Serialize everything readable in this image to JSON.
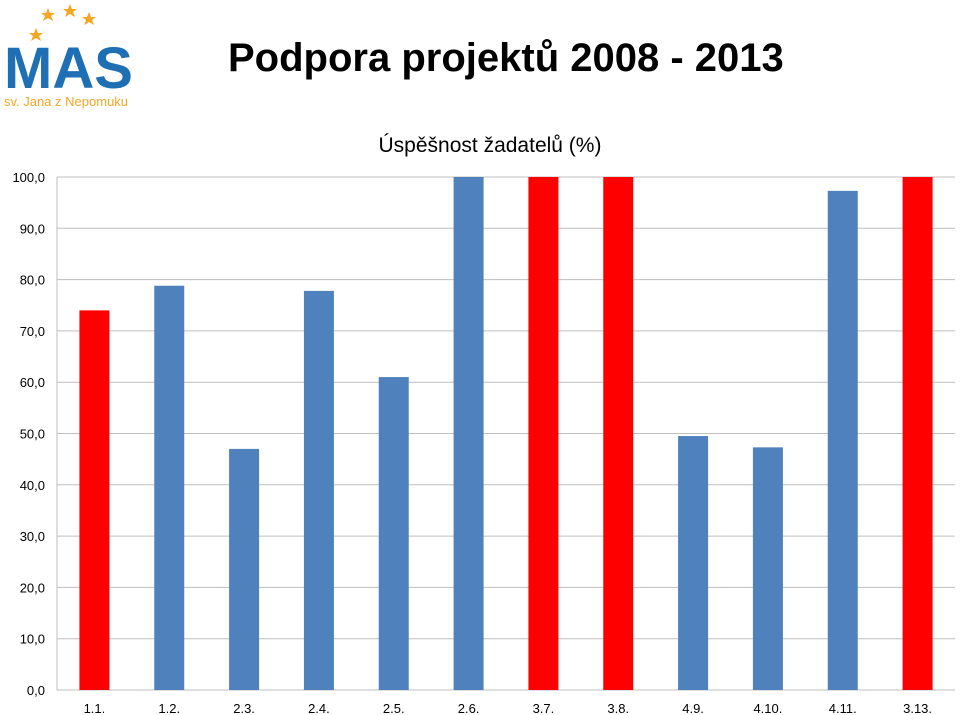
{
  "logo": {
    "text": "MAS",
    "subtitle": "sv. Jana z Nepomuku",
    "colors": {
      "blue": "#1f6fb5",
      "orange": "#f5a623"
    }
  },
  "slide": {
    "title": "Podpora projektů 2008 - 2013"
  },
  "chart_data": {
    "type": "bar",
    "title": "Úspěšnost žadatelů (%)",
    "categories": [
      "1.1.",
      "1.2.",
      "2.3.",
      "2.4.",
      "2.5.",
      "2.6.",
      "3.7.",
      "3.8.",
      "4.9.",
      "4.10.",
      "4.11.",
      "3.13."
    ],
    "values": [
      74.0,
      78.8,
      47.0,
      77.8,
      61.0,
      100.0,
      100.0,
      100.0,
      49.5,
      47.3,
      97.3,
      100.0
    ],
    "bar_colors": [
      "#ff0000",
      "#4f81bd",
      "#4f81bd",
      "#4f81bd",
      "#4f81bd",
      "#4f81bd",
      "#ff0000",
      "#ff0000",
      "#4f81bd",
      "#4f81bd",
      "#4f81bd",
      "#ff0000"
    ],
    "ylim": [
      0,
      100
    ],
    "yticks": [
      "0,0",
      "10,0",
      "20,0",
      "30,0",
      "40,0",
      "50,0",
      "60,0",
      "70,0",
      "80,0",
      "90,0",
      "100,0"
    ],
    "xlabel": "",
    "ylabel": "",
    "grid": true,
    "legend": "none"
  }
}
